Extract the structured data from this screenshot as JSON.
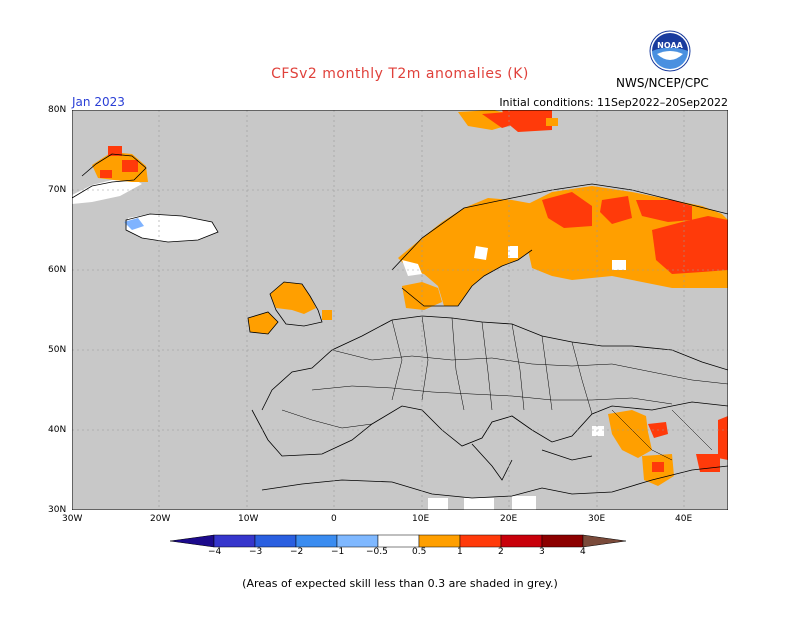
{
  "header": {
    "title": "CFSv2 monthly T2m anomalies (K)",
    "month": "Jan 2023",
    "initial_conditions": "Initial conditions: 11Sep2022–20Sep2022",
    "agency": "NWS/NCEP/CPC",
    "logo_text": "NOAA"
  },
  "map": {
    "lat_ticks": [
      "80N",
      "70N",
      "60N",
      "50N",
      "40N",
      "30N"
    ],
    "lon_ticks": [
      "30W",
      "20W",
      "10W",
      "0",
      "10E",
      "20E",
      "30E",
      "40E"
    ],
    "colors": {
      "grey_mask": "#c8c8c8",
      "neutral": "#ffffff",
      "orange": "#ff9f00",
      "red_orange": "#ff3a0a",
      "light_blue": "#7fb3ff"
    }
  },
  "colorbar": {
    "labels": [
      "−4",
      "−3",
      "−2",
      "−1",
      "−0.5",
      "0.5",
      "1",
      "2",
      "3",
      "4"
    ],
    "colors": [
      "#1c0a8c",
      "#3636cc",
      "#2a5fe0",
      "#3a8cf0",
      "#7fb8ff",
      "#ffffff",
      "#ff9f00",
      "#ff3a0a",
      "#c8000a",
      "#8c0000",
      "#c8a090",
      "#7a4a3a"
    ]
  },
  "footnote": "(Areas of expected skill less than 0.3 are shaded in grey.)"
}
